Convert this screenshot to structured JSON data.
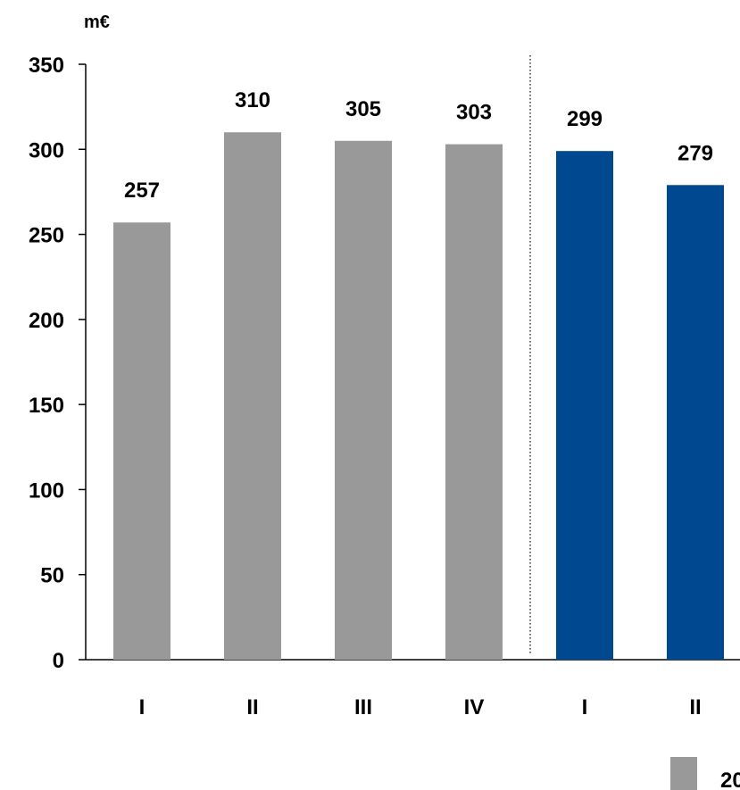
{
  "chart_data": {
    "type": "bar",
    "unit_label": "m€",
    "categories": [
      "I",
      "II",
      "III",
      "IV",
      "I",
      "II"
    ],
    "values": [
      257,
      310,
      305,
      303,
      299,
      279
    ],
    "bar_colors": [
      "#999999",
      "#999999",
      "#999999",
      "#999999",
      "#004990",
      "#004990"
    ],
    "ylim": [
      0,
      350
    ],
    "yticks": [
      0,
      50,
      100,
      150,
      200,
      250,
      300,
      350
    ],
    "grid": false,
    "legend": [
      {
        "name": "20",
        "color": "#999999"
      }
    ]
  }
}
